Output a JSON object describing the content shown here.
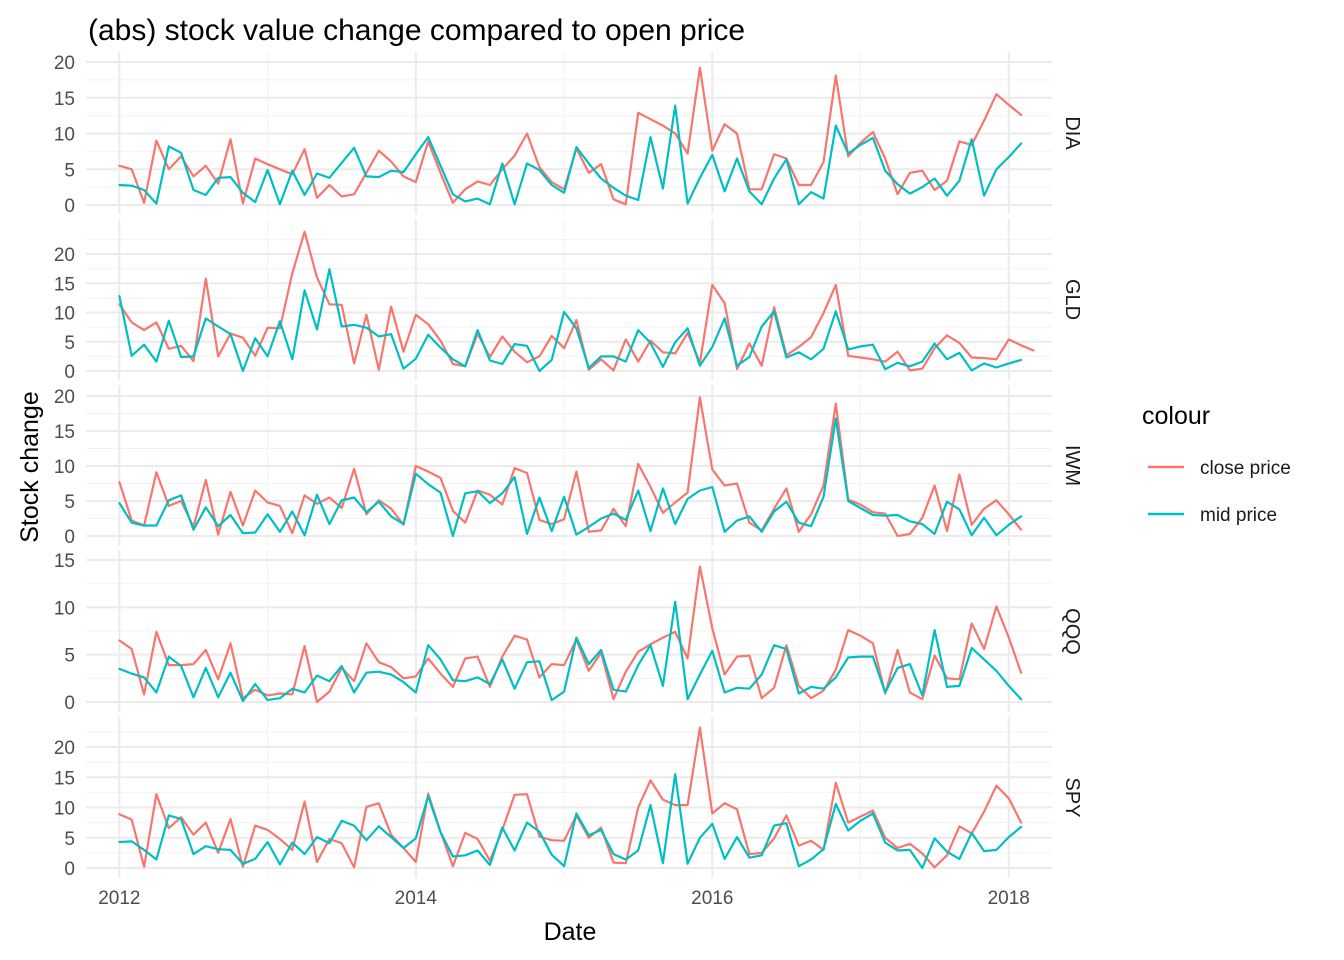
{
  "chart_data": {
    "type": "line",
    "title": "(abs) stock value change compared to open price",
    "xlabel": "Date",
    "ylabel": "Stock change",
    "x_ticks": [
      "2012",
      "2014",
      "2016",
      "2018"
    ],
    "x_start": "2012-01",
    "x_interval": "monthly",
    "legend": {
      "title": "colour",
      "position": "right",
      "entries": [
        {
          "name": "close price",
          "color": "#F8766D"
        },
        {
          "name": "mid price",
          "color": "#00BFC4"
        }
      ]
    },
    "facets": [
      {
        "name": "DIA",
        "y_ticks": [
          0,
          5,
          10,
          15,
          20
        ],
        "ylim": [
          0,
          20
        ],
        "series": [
          {
            "name": "close price",
            "color": "#F8766D",
            "values": [
              5.5,
              5,
              0.3,
              9,
              5,
              6.8,
              4,
              5.5,
              3,
              9.2,
              0.2,
              6.5,
              5.7,
              5,
              4.3,
              7.8,
              1,
              2.8,
              1.2,
              1.5,
              4.5,
              7.6,
              6.1,
              4,
              3.2,
              8.9,
              4.5,
              0.3,
              2.2,
              3.3,
              2.8,
              5,
              6.9,
              10,
              5.3,
              3.2,
              2.2,
              7.9,
              4.5,
              5.7,
              0.8,
              0.1,
              12.9,
              12,
              11.1,
              10,
              7.2,
              19.2,
              7.6,
              11.3,
              10,
              2.2,
              2.2,
              7.1,
              6.5,
              2.8,
              2.8,
              6,
              18.1,
              6.8,
              8.7,
              10.2,
              6.5,
              1.5,
              4.5,
              4.8,
              2.1,
              3.4,
              8.9,
              8.4,
              11.8,
              15.5,
              14,
              12.6
            ]
          },
          {
            "name": "mid price",
            "color": "#00BFC4",
            "values": [
              2.8,
              2.7,
              2.1,
              0.2,
              8.2,
              7.3,
              2.1,
              1.4,
              3.8,
              3.9,
              1.7,
              0.4,
              4.9,
              0.1,
              4.8,
              1.4,
              4.4,
              3.8,
              5.9,
              8,
              4,
              3.9,
              4.8,
              4.6,
              7.1,
              9.5,
              5.5,
              1.5,
              0.5,
              0.9,
              0.1,
              5.8,
              0.1,
              5.8,
              4.9,
              2.8,
              1.7,
              8.1,
              5.8,
              3.7,
              2.4,
              1.3,
              0.7,
              9.5,
              2.3,
              13.9,
              0.2,
              3.8,
              7,
              1.9,
              6.5,
              1.9,
              0.1,
              3.7,
              6.4,
              0.1,
              1.8,
              0.9,
              11.1,
              7.2,
              8.4,
              9.4,
              4.8,
              2.9,
              1.6,
              2.5,
              3.7,
              1.3,
              3.4,
              9.2,
              1.3,
              5,
              6.7,
              8.6
            ]
          }
        ]
      },
      {
        "name": "GLD",
        "y_ticks": [
          0,
          5,
          10,
          15,
          20
        ],
        "ylim": [
          0,
          24
        ],
        "series": [
          {
            "name": "close price",
            "color": "#F8766D",
            "values": [
              11.4,
              8.3,
              7,
              8.3,
              3.8,
              4.3,
              1.7,
              15.8,
              2.5,
              6.4,
              5.7,
              2.6,
              7.4,
              7.3,
              16.7,
              23.8,
              16,
              11.4,
              11.3,
              1.3,
              9.6,
              0.2,
              11,
              3.3,
              9.6,
              8,
              5.2,
              1.2,
              0.8,
              6.4,
              2.4,
              5.9,
              3.3,
              1.5,
              2.5,
              6,
              3.9,
              8.7,
              0.2,
              2,
              0.1,
              5.4,
              1.6,
              5.2,
              3.2,
              3,
              6.5,
              1.4,
              14.7,
              11.6,
              0.3,
              4.7,
              0.9,
              10.9,
              2.7,
              4.1,
              5.8,
              9.9,
              14.7,
              2.6,
              2.3,
              2,
              1.6,
              3.3,
              0.1,
              0.4,
              3.9,
              6.1,
              4.8,
              2.3,
              2.2,
              2,
              5.4,
              4.4,
              3.5
            ]
          },
          {
            "name": "mid price",
            "color": "#00BFC4",
            "values": [
              12.8,
              2.6,
              4.5,
              1.6,
              8.6,
              2.4,
              2.5,
              9,
              7.6,
              6.3,
              0,
              5.6,
              2.5,
              8.5,
              2,
              13.8,
              7.1,
              17.4,
              7.6,
              7.9,
              7.4,
              5.9,
              6.3,
              0.4,
              2.1,
              6.2,
              4,
              2,
              0.8,
              7,
              1.8,
              1.2,
              4.6,
              4.3,
              0,
              1.9,
              10.1,
              7.3,
              0.5,
              2.5,
              2.5,
              1.6,
              7,
              4.8,
              0.7,
              4.9,
              7.3,
              0.9,
              4.1,
              9,
              0.9,
              2.4,
              7.6,
              10.2,
              2.3,
              3.2,
              2,
              3.8,
              10.2,
              3.7,
              4.2,
              4.5,
              0.3,
              1.4,
              0.8,
              1.6,
              4.7,
              2,
              3.1,
              0.1,
              1.3,
              0.6,
              1.3,
              1.9
            ]
          }
        ]
      },
      {
        "name": "IWM",
        "y_ticks": [
          0,
          5,
          10,
          15,
          20
        ],
        "ylim": [
          0,
          20
        ],
        "series": [
          {
            "name": "close price",
            "color": "#F8766D",
            "values": [
              7.7,
              2.2,
              1.5,
              9.1,
              4.3,
              5,
              1.3,
              8,
              0.2,
              6.3,
              1.5,
              6.5,
              4.8,
              4.3,
              0.4,
              5.8,
              4.6,
              5.5,
              4,
              9.6,
              3.1,
              5.1,
              3.9,
              1.6,
              10,
              9.2,
              8.3,
              3.6,
              1.9,
              6.5,
              5.9,
              4.5,
              9.7,
              9,
              2.3,
              1.7,
              2.4,
              9.2,
              0.6,
              0.8,
              3.9,
              1.4,
              10.3,
              7,
              3.3,
              4.8,
              6.2,
              19.8,
              9.5,
              7.2,
              7.5,
              1.9,
              0.8,
              3.9,
              6.8,
              0.6,
              3.1,
              7.2,
              18.9,
              5.2,
              4.5,
              3.4,
              3.2,
              0,
              0.3,
              2.6,
              7.2,
              0.7,
              8.8,
              1.6,
              3.9,
              5.1,
              3.1,
              0.9
            ]
          },
          {
            "name": "mid price",
            "color": "#00BFC4",
            "values": [
              4.7,
              1.9,
              1.5,
              1.5,
              5.1,
              5.8,
              0.9,
              4.1,
              1.4,
              3,
              0.4,
              0.5,
              3.1,
              0.6,
              3.5,
              0.1,
              5.9,
              1.7,
              5.1,
              5.5,
              3.4,
              4.9,
              2.8,
              1.7,
              8.9,
              7.4,
              6.2,
              0,
              6.1,
              6.4,
              4.7,
              6.1,
              8.4,
              0.3,
              5.5,
              0.7,
              5.6,
              0.2,
              1.3,
              2.5,
              3.2,
              2.3,
              6.5,
              0.7,
              6.8,
              1.7,
              5.3,
              6.5,
              7,
              0.6,
              2.2,
              2.8,
              0.6,
              3.5,
              4.9,
              1.9,
              1.4,
              5.6,
              16.8,
              5,
              4,
              3,
              2.9,
              3,
              2.1,
              1.7,
              0.3,
              4.9,
              3.8,
              0.1,
              2.6,
              0.1,
              1.6,
              2.8
            ]
          }
        ]
      },
      {
        "name": "QQQ",
        "y_ticks": [
          0,
          5,
          10,
          15
        ],
        "ylim": [
          0,
          15
        ],
        "series": [
          {
            "name": "close price",
            "color": "#F8766D",
            "values": [
              6.5,
              5.6,
              0.8,
              7.4,
              3.9,
              3.9,
              4,
              5.5,
              2.4,
              6.2,
              0.4,
              1.3,
              0.7,
              0.9,
              0.8,
              5.9,
              0,
              1.1,
              3.6,
              2.2,
              6.2,
              4.2,
              3.7,
              2.5,
              2.7,
              4.6,
              3,
              1.6,
              4.6,
              4.8,
              1.6,
              4.8,
              7,
              6.6,
              2.6,
              4,
              3.9,
              6.6,
              3.3,
              5.2,
              0.3,
              3.2,
              5.3,
              6.1,
              6.8,
              7.4,
              4.6,
              14.3,
              7.8,
              2.9,
              4.8,
              4.9,
              0.4,
              1.5,
              6,
              1.7,
              0.4,
              1.2,
              3.4,
              7.6,
              7,
              6.2,
              0.9,
              5.5,
              1,
              0.3,
              4.9,
              2.5,
              2.4,
              8.3,
              5.6,
              10.1,
              6.8,
              3.1
            ]
          },
          {
            "name": "mid price",
            "color": "#00BFC4",
            "values": [
              3.5,
              3,
              2.6,
              1,
              4.8,
              3.8,
              0.5,
              3.6,
              0.5,
              3.1,
              0.1,
              1.9,
              0.2,
              0.4,
              1.4,
              1,
              2.8,
              2.2,
              3.8,
              1,
              3.1,
              3.2,
              2.9,
              2.1,
              1,
              6,
              4.5,
              2.3,
              2.2,
              2.6,
              1.9,
              4.5,
              1.4,
              4.2,
              4.3,
              0.2,
              1.1,
              6.8,
              4,
              5.5,
              1.3,
              1.1,
              3.9,
              6,
              1.7,
              10.6,
              0.3,
              2.9,
              5.4,
              1,
              1.5,
              1.4,
              2.9,
              6,
              5.6,
              0.9,
              1.6,
              1.4,
              2.6,
              4.7,
              4.8,
              4.8,
              1,
              3.6,
              4,
              0.7,
              7.6,
              1.6,
              1.7,
              5.7,
              4.5,
              3.3,
              1.7,
              0.3
            ]
          }
        ]
      },
      {
        "name": "SPY",
        "y_ticks": [
          0,
          5,
          10,
          15,
          20
        ],
        "ylim": [
          0,
          24
        ],
        "series": [
          {
            "name": "close price",
            "color": "#F8766D",
            "values": [
              8.9,
              8,
              0.2,
              12.2,
              6.6,
              8.4,
              5.5,
              7.5,
              2.5,
              8.1,
              0.2,
              7,
              6.3,
              4.8,
              3,
              11,
              1,
              4.8,
              4.1,
              0.1,
              10.1,
              10.7,
              5.5,
              3.3,
              1,
              12.3,
              6,
              0.3,
              5.8,
              4.8,
              1.2,
              6.3,
              12.1,
              12.2,
              5.2,
              4.6,
              4.5,
              8.7,
              5,
              6.7,
              0.9,
              0.8,
              10,
              14.5,
              11.3,
              10.4,
              10.4,
              23.2,
              9,
              10.7,
              9.7,
              2.3,
              2.5,
              4.9,
              8.7,
              3.7,
              4.5,
              3,
              14.1,
              7.5,
              8.5,
              9.5,
              5,
              3.3,
              4,
              2.4,
              0.1,
              2.1,
              6.9,
              5.7,
              9.3,
              13.6,
              11.5,
              7.5
            ]
          },
          {
            "name": "mid price",
            "color": "#00BFC4",
            "values": [
              4.3,
              4.4,
              3,
              1.4,
              8.7,
              8.1,
              2.3,
              3.6,
              3.1,
              3,
              0.7,
              1.5,
              4.3,
              0.6,
              4.2,
              2.3,
              5.1,
              4.1,
              7.8,
              7,
              4.6,
              6.9,
              5.1,
              3.3,
              4.9,
              11.9,
              5.9,
              1.9,
              2.1,
              2.9,
              0.5,
              6.7,
              2.9,
              7.5,
              6,
              2.2,
              0.3,
              9,
              5.4,
              6.3,
              2.3,
              1.4,
              2.9,
              10.4,
              0.8,
              15.5,
              0.7,
              5,
              7.3,
              1.5,
              5.1,
              1.7,
              2.1,
              7,
              7.4,
              0.3,
              1.4,
              3.1,
              10.6,
              6.2,
              7.8,
              9,
              4.2,
              2.9,
              3,
              0,
              4.9,
              2.7,
              1.5,
              5.8,
              2.8,
              3,
              5.1,
              6.8
            ]
          }
        ]
      }
    ]
  }
}
